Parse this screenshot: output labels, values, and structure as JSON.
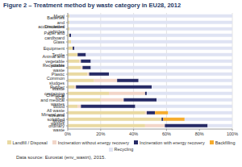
{
  "chart_data": {
    "type": "bar",
    "orientation": "horizontal",
    "stacked": true,
    "grid": true,
    "legend": "bottom",
    "title": "Figure 2 – Treatment method by waste category in EU28, 2012",
    "annotations": [
      "Data source: Eurostat (env_wastrt), 2015."
    ],
    "categories": [
      "Metal",
      "Batteries and accumulators",
      "Discarded vehicles",
      "Paper and cardboard",
      "Glass",
      "Equipment",
      "Textile",
      "Animal and vegetable wastes",
      "Recyclable waste",
      "Plastic",
      "Common sludges",
      "Rubber",
      "Waste containing PCB",
      "Chemical and medical wastes",
      "Wood",
      "All waste streams",
      "Mineral and solidified wastes",
      "Mixed ordinary waste"
    ],
    "series": [
      {
        "name": "Landfill / Disposal",
        "color": "#e9d9a2",
        "values": [
          1,
          1,
          1,
          1,
          2,
          3,
          6,
          7,
          8,
          12,
          16,
          4,
          25,
          20,
          6,
          47,
          57,
          47
        ]
      },
      {
        "name": "Incineration without energy recovery",
        "color": "#f2d6c9",
        "values": [
          0,
          0,
          0,
          0,
          0,
          0,
          0,
          1,
          1,
          1,
          14,
          1,
          22,
          14,
          2,
          1,
          0,
          12
        ]
      },
      {
        "name": "Incineration with energy recovery",
        "color": "#272b66",
        "values": [
          0,
          0,
          0,
          1,
          0,
          1,
          5,
          6,
          5,
          12,
          13,
          46,
          1,
          20,
          33,
          5,
          1,
          26
        ]
      },
      {
        "name": "Backfilling",
        "color": "#f5ac2e",
        "values": [
          0,
          0,
          0,
          0,
          0,
          0,
          0,
          0,
          0,
          0,
          0,
          0,
          0,
          0,
          0,
          8,
          13,
          0
        ]
      },
      {
        "name": "Recycling",
        "color": "#dfe3f3",
        "values": [
          99,
          99,
          99,
          98,
          98,
          96,
          89,
          86,
          86,
          75,
          57,
          49,
          52,
          46,
          59,
          39,
          29,
          15
        ]
      }
    ],
    "xlim": [
      0,
      100
    ],
    "xticks": [
      {
        "value": 0,
        "label": "0%"
      },
      {
        "value": 20,
        "label": "20%"
      },
      {
        "value": 40,
        "label": "40%"
      },
      {
        "value": 60,
        "label": "60%"
      },
      {
        "value": 80,
        "label": "80%"
      },
      {
        "value": 100,
        "label": "100%"
      }
    ]
  }
}
